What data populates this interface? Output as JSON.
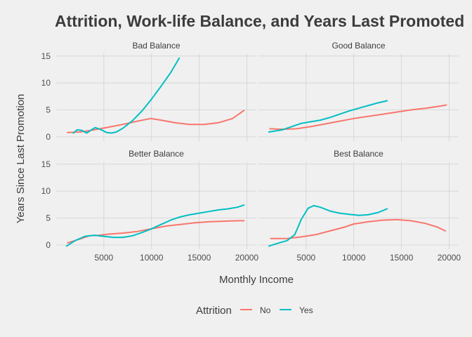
{
  "chart_data": {
    "type": "line",
    "title": "Attrition, Work-life Balance, and Years Last Promoted",
    "xlabel": "Monthly Income",
    "ylabel": "Years Since Last Promotion",
    "xlim": [
      0,
      21000
    ],
    "ylim": [
      -0.8,
      15.5
    ],
    "xticks": [
      5000,
      10000,
      15000,
      20000
    ],
    "yticks": [
      0,
      5,
      10,
      15
    ],
    "grid": true,
    "legend": {
      "title": "Attrition",
      "position": "bottom",
      "entries": [
        "No",
        "Yes"
      ]
    },
    "colors": {
      "No": "#f8766d",
      "Yes": "#00bfc4"
    },
    "panels": [
      {
        "label": "Bad Balance",
        "series": [
          {
            "name": "No",
            "points": [
              [
                1200,
                0.8
              ],
              [
                2500,
                0.9
              ],
              [
                4000,
                1.3
              ],
              [
                5500,
                1.8
              ],
              [
                7000,
                2.3
              ],
              [
                8500,
                2.9
              ],
              [
                9900,
                3.4
              ],
              [
                11000,
                3.1
              ],
              [
                12500,
                2.6
              ],
              [
                14000,
                2.3
              ],
              [
                15500,
                2.3
              ],
              [
                17000,
                2.6
              ],
              [
                18500,
                3.4
              ],
              [
                19700,
                4.9
              ]
            ]
          },
          {
            "name": "Yes",
            "points": [
              [
                1800,
                0.7
              ],
              [
                2200,
                1.3
              ],
              [
                2700,
                1.2
              ],
              [
                3200,
                0.7
              ],
              [
                3700,
                1.3
              ],
              [
                4100,
                1.7
              ],
              [
                4600,
                1.4
              ],
              [
                5300,
                0.8
              ],
              [
                5800,
                0.7
              ],
              [
                6300,
                0.9
              ],
              [
                7000,
                1.6
              ],
              [
                8000,
                3.0
              ],
              [
                9000,
                4.8
              ],
              [
                10000,
                7.0
              ],
              [
                11000,
                9.4
              ],
              [
                12000,
                11.9
              ],
              [
                12900,
                14.6
              ]
            ]
          }
        ]
      },
      {
        "label": "Good Balance",
        "series": [
          {
            "name": "No",
            "points": [
              [
                1200,
                1.5
              ],
              [
                2500,
                1.4
              ],
              [
                4000,
                1.5
              ],
              [
                5500,
                1.9
              ],
              [
                7000,
                2.4
              ],
              [
                8500,
                2.9
              ],
              [
                10000,
                3.4
              ],
              [
                11500,
                3.8
              ],
              [
                13000,
                4.2
              ],
              [
                14500,
                4.6
              ],
              [
                16000,
                5.0
              ],
              [
                17500,
                5.3
              ],
              [
                19000,
                5.7
              ],
              [
                19700,
                5.9
              ]
            ]
          },
          {
            "name": "Yes",
            "points": [
              [
                1100,
                0.9
              ],
              [
                2500,
                1.3
              ],
              [
                3500,
                1.9
              ],
              [
                4500,
                2.5
              ],
              [
                5500,
                2.8
              ],
              [
                6500,
                3.1
              ],
              [
                7500,
                3.6
              ],
              [
                8500,
                4.2
              ],
              [
                9500,
                4.8
              ],
              [
                10500,
                5.3
              ],
              [
                11500,
                5.8
              ],
              [
                12500,
                6.3
              ],
              [
                13500,
                6.7
              ]
            ]
          }
        ]
      },
      {
        "label": "Better Balance",
        "series": [
          {
            "name": "No",
            "points": [
              [
                1200,
                0.4
              ],
              [
                2500,
                1.1
              ],
              [
                3500,
                1.7
              ],
              [
                4500,
                1.8
              ],
              [
                5500,
                2.0
              ],
              [
                7000,
                2.2
              ],
              [
                8500,
                2.5
              ],
              [
                10000,
                3.0
              ],
              [
                11500,
                3.5
              ],
              [
                13000,
                3.8
              ],
              [
                14500,
                4.1
              ],
              [
                16000,
                4.3
              ],
              [
                17500,
                4.4
              ],
              [
                19000,
                4.5
              ],
              [
                19700,
                4.5
              ]
            ]
          },
          {
            "name": "Yes",
            "points": [
              [
                1100,
                -0.2
              ],
              [
                2000,
                0.8
              ],
              [
                3000,
                1.6
              ],
              [
                4000,
                1.8
              ],
              [
                5000,
                1.6
              ],
              [
                6000,
                1.4
              ],
              [
                7000,
                1.4
              ],
              [
                8000,
                1.7
              ],
              [
                9000,
                2.3
              ],
              [
                10000,
                3.0
              ],
              [
                11000,
                3.8
              ],
              [
                12000,
                4.6
              ],
              [
                13000,
                5.2
              ],
              [
                14000,
                5.6
              ],
              [
                15000,
                5.9
              ],
              [
                16000,
                6.2
              ],
              [
                17000,
                6.5
              ],
              [
                18000,
                6.7
              ],
              [
                19000,
                7.0
              ],
              [
                19700,
                7.4
              ]
            ]
          }
        ]
      },
      {
        "label": "Best Balance",
        "series": [
          {
            "name": "No",
            "points": [
              [
                1300,
                1.2
              ],
              [
                3000,
                1.2
              ],
              [
                4500,
                1.5
              ],
              [
                6000,
                1.9
              ],
              [
                7500,
                2.6
              ],
              [
                9000,
                3.3
              ],
              [
                10000,
                3.9
              ],
              [
                11500,
                4.3
              ],
              [
                13000,
                4.6
              ],
              [
                14500,
                4.7
              ],
              [
                16000,
                4.5
              ],
              [
                17500,
                4.0
              ],
              [
                18800,
                3.3
              ],
              [
                19600,
                2.6
              ]
            ]
          },
          {
            "name": "Yes",
            "points": [
              [
                1100,
                -0.2
              ],
              [
                2200,
                0.4
              ],
              [
                3000,
                0.8
              ],
              [
                3800,
                1.9
              ],
              [
                4500,
                4.8
              ],
              [
                5200,
                6.8
              ],
              [
                5800,
                7.3
              ],
              [
                6500,
                7.0
              ],
              [
                7500,
                6.3
              ],
              [
                8500,
                5.9
              ],
              [
                9500,
                5.7
              ],
              [
                10500,
                5.5
              ],
              [
                11500,
                5.6
              ],
              [
                12500,
                6.0
              ],
              [
                13500,
                6.7
              ]
            ]
          }
        ]
      }
    ]
  }
}
